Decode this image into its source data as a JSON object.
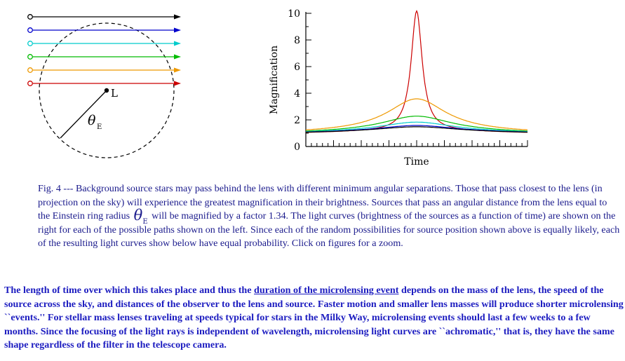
{
  "diagram": {
    "lens_label": "L",
    "radius_symbol": "θ",
    "radius_subscript": "E",
    "ray_colors": [
      "#000000",
      "#0000cc",
      "#00cccc",
      "#00bb00",
      "#ee9900",
      "#cc0000"
    ]
  },
  "chart_data": {
    "type": "line",
    "title": "",
    "xlabel": "Time",
    "ylabel": "Magnification",
    "ylim": [
      0,
      10
    ],
    "yticks": [
      0,
      2,
      4,
      6,
      8,
      10
    ],
    "x_range": [
      -1,
      1
    ],
    "baseline": 1.0,
    "series": [
      {
        "color": "#cc0000",
        "peak": 10.0
      },
      {
        "color": "#ee9900",
        "peak": 3.4
      },
      {
        "color": "#00bb00",
        "peak": 2.1
      },
      {
        "color": "#00cccc",
        "peak": 1.65
      },
      {
        "color": "#0000cc",
        "peak": 1.4
      },
      {
        "color": "#000000",
        "peak": 1.3
      }
    ]
  },
  "caption": {
    "part1": "Fig. 4 --- Background source stars may pass behind the lens with different minimum angular separations. Those that pass closest to the lens (in projection on the sky) will experience the greatest magnification in their brightness. Sources that pass an angular distance from the lens equal to the Einstein ring radius",
    "theta_symbol": "θ",
    "theta_subscript": "E",
    "part2": "will be magnified by a factor 1.34. The light curves (brightness of the sources as a function of time) are shown on the right for each of the possible paths shown on the left. Since each of the random possibilities for source position shown above is equally likely, each of the resulting light curves show below have equal probability. Click on figures for a zoom."
  },
  "body": {
    "part1": "The length of time over which this takes place and thus the",
    "link_text": "duration of the microlensing event",
    "part2": "depends on the mass of the lens, the speed of the source across the sky, and distances of the observer to the lens and source. Faster motion and smaller lens masses will produce shorter microlensing ``events.'' For stellar mass lenses traveling at speeds typical for stars in the Milky Way, microlensing events should last a few weeks to a few months. Since the focusing of the light rays is independent of wavelength, microlensing light curves are ``achromatic,'' that is, they have the same shape regardless of the filter in the telescope camera."
  }
}
